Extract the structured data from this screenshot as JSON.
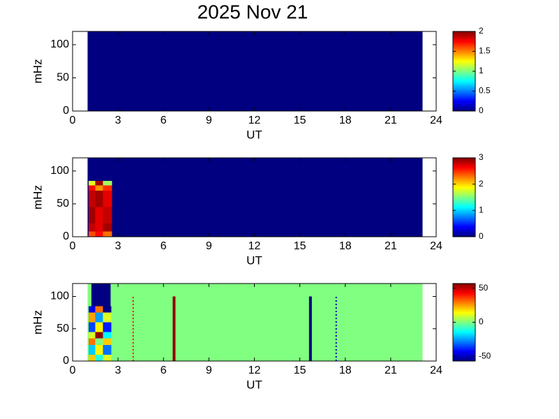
{
  "chart_data": [
    {
      "type": "heatmap",
      "title": "2025 Nov 21",
      "xlabel": "UT",
      "ylabel": "mHz",
      "xlim": [
        0,
        24
      ],
      "xticks": [
        0,
        3,
        6,
        9,
        12,
        15,
        18,
        21,
        24
      ],
      "ylim": [
        0,
        120
      ],
      "yticks": [
        0,
        50,
        100
      ],
      "clim": [
        0,
        2
      ],
      "cticks": [
        0,
        0.5,
        1,
        1.5,
        2
      ],
      "colormap": "jet",
      "cells": [
        {
          "x": [
            1.0,
            23.1
          ],
          "y": [
            0,
            120
          ],
          "value": 0
        }
      ]
    },
    {
      "type": "heatmap",
      "xlabel": "UT",
      "ylabel": "mHz",
      "xlim": [
        0,
        24
      ],
      "xticks": [
        0,
        3,
        6,
        9,
        12,
        15,
        18,
        21,
        24
      ],
      "ylim": [
        0,
        120
      ],
      "yticks": [
        0,
        50,
        100
      ],
      "clim": [
        0,
        3
      ],
      "cticks": [
        0,
        1,
        2,
        3
      ],
      "colormap": "jet",
      "cells": [
        {
          "x": [
            1.0,
            23.1
          ],
          "y": [
            0,
            120
          ],
          "value": 0
        },
        {
          "x": [
            1.05,
            1.5
          ],
          "y": [
            0,
            8
          ],
          "value": 2.4
        },
        {
          "x": [
            1.5,
            2.0
          ],
          "y": [
            0,
            8
          ],
          "value": 2.6
        },
        {
          "x": [
            2.0,
            2.6
          ],
          "y": [
            0,
            8
          ],
          "value": 2.3
        },
        {
          "x": [
            1.05,
            1.5
          ],
          "y": [
            8,
            20
          ],
          "value": 2.8
        },
        {
          "x": [
            1.5,
            2.0
          ],
          "y": [
            8,
            20
          ],
          "value": 2.7
        },
        {
          "x": [
            2.0,
            2.6
          ],
          "y": [
            8,
            20
          ],
          "value": 2.9
        },
        {
          "x": [
            1.05,
            1.5
          ],
          "y": [
            20,
            45
          ],
          "value": 2.9
        },
        {
          "x": [
            1.5,
            2.0
          ],
          "y": [
            20,
            45
          ],
          "value": 2.7
        },
        {
          "x": [
            2.0,
            2.6
          ],
          "y": [
            20,
            45
          ],
          "value": 2.8
        },
        {
          "x": [
            1.05,
            1.5
          ],
          "y": [
            45,
            70
          ],
          "value": 2.8
        },
        {
          "x": [
            1.5,
            2.0
          ],
          "y": [
            45,
            70
          ],
          "value": 2.9
        },
        {
          "x": [
            2.0,
            2.6
          ],
          "y": [
            45,
            70
          ],
          "value": 2.7
        },
        {
          "x": [
            1.05,
            1.5
          ],
          "y": [
            70,
            78
          ],
          "value": 2.6
        },
        {
          "x": [
            1.5,
            2.0
          ],
          "y": [
            70,
            78
          ],
          "value": 2.2
        },
        {
          "x": [
            2.0,
            2.6
          ],
          "y": [
            70,
            78
          ],
          "value": 2.5
        },
        {
          "x": [
            1.05,
            1.5
          ],
          "y": [
            78,
            85
          ],
          "value": 1.8
        },
        {
          "x": [
            1.5,
            2.0
          ],
          "y": [
            78,
            85
          ],
          "value": 2.9
        },
        {
          "x": [
            2.0,
            2.6
          ],
          "y": [
            78,
            85
          ],
          "value": 1.6
        }
      ]
    },
    {
      "type": "heatmap",
      "xlabel": "UT",
      "ylabel": "mHz",
      "xlim": [
        0,
        24
      ],
      "xticks": [
        0,
        3,
        6,
        9,
        12,
        15,
        18,
        21,
        24
      ],
      "ylim": [
        0,
        120
      ],
      "yticks": [
        0,
        50,
        100
      ],
      "clim": [
        -57,
        57
      ],
      "cticks": [
        -50,
        0,
        50
      ],
      "colormap": "jet",
      "cells": [
        {
          "x": [
            1.0,
            23.1
          ],
          "y": [
            0,
            120
          ],
          "value": 0
        },
        {
          "x": [
            1.25,
            2.5
          ],
          "y": [
            85,
            120
          ],
          "value": -57
        },
        {
          "x": [
            1.05,
            1.5
          ],
          "y": [
            0,
            10
          ],
          "value": 20
        },
        {
          "x": [
            1.5,
            2.0
          ],
          "y": [
            0,
            10
          ],
          "value": -10
        },
        {
          "x": [
            2.0,
            2.55
          ],
          "y": [
            0,
            10
          ],
          "value": 10
        },
        {
          "x": [
            1.05,
            1.5
          ],
          "y": [
            10,
            25
          ],
          "value": -20
        },
        {
          "x": [
            1.5,
            2.0
          ],
          "y": [
            10,
            25
          ],
          "value": 15
        },
        {
          "x": [
            2.0,
            2.55
          ],
          "y": [
            10,
            25
          ],
          "value": -30
        },
        {
          "x": [
            1.05,
            1.5
          ],
          "y": [
            25,
            35
          ],
          "value": 30
        },
        {
          "x": [
            1.5,
            2.0
          ],
          "y": [
            25,
            35
          ],
          "value": 0
        },
        {
          "x": [
            2.0,
            2.55
          ],
          "y": [
            25,
            35
          ],
          "value": 20
        },
        {
          "x": [
            1.05,
            1.5
          ],
          "y": [
            35,
            45
          ],
          "value": 10
        },
        {
          "x": [
            1.5,
            2.0
          ],
          "y": [
            35,
            45
          ],
          "value": 55
        },
        {
          "x": [
            2.0,
            2.55
          ],
          "y": [
            35,
            45
          ],
          "value": -15
        },
        {
          "x": [
            1.05,
            1.5
          ],
          "y": [
            45,
            60
          ],
          "value": -35
        },
        {
          "x": [
            1.5,
            2.0
          ],
          "y": [
            45,
            60
          ],
          "value": 15
        },
        {
          "x": [
            2.0,
            2.55
          ],
          "y": [
            45,
            60
          ],
          "value": -40
        },
        {
          "x": [
            1.05,
            1.5
          ],
          "y": [
            60,
            75
          ],
          "value": 25
        },
        {
          "x": [
            1.5,
            2.0
          ],
          "y": [
            60,
            75
          ],
          "value": -25
        },
        {
          "x": [
            2.0,
            2.55
          ],
          "y": [
            60,
            75
          ],
          "value": 10
        },
        {
          "x": [
            1.05,
            1.5
          ],
          "y": [
            75,
            85
          ],
          "value": -45
        },
        {
          "x": [
            1.5,
            2.0
          ],
          "y": [
            75,
            85
          ],
          "value": 30
        },
        {
          "x": [
            2.0,
            2.55
          ],
          "y": [
            75,
            85
          ],
          "value": -57
        }
      ],
      "lines": [
        {
          "x": 4.0,
          "y": [
            0,
            100
          ],
          "value": 40,
          "dashed": true
        },
        {
          "x": 6.7,
          "y": [
            0,
            100
          ],
          "value": 55,
          "dashed": false
        },
        {
          "x": 15.7,
          "y": [
            0,
            100
          ],
          "value": -57,
          "dashed": false
        },
        {
          "x": 17.4,
          "y": [
            0,
            100
          ],
          "value": -50,
          "dashed": true
        }
      ]
    }
  ]
}
